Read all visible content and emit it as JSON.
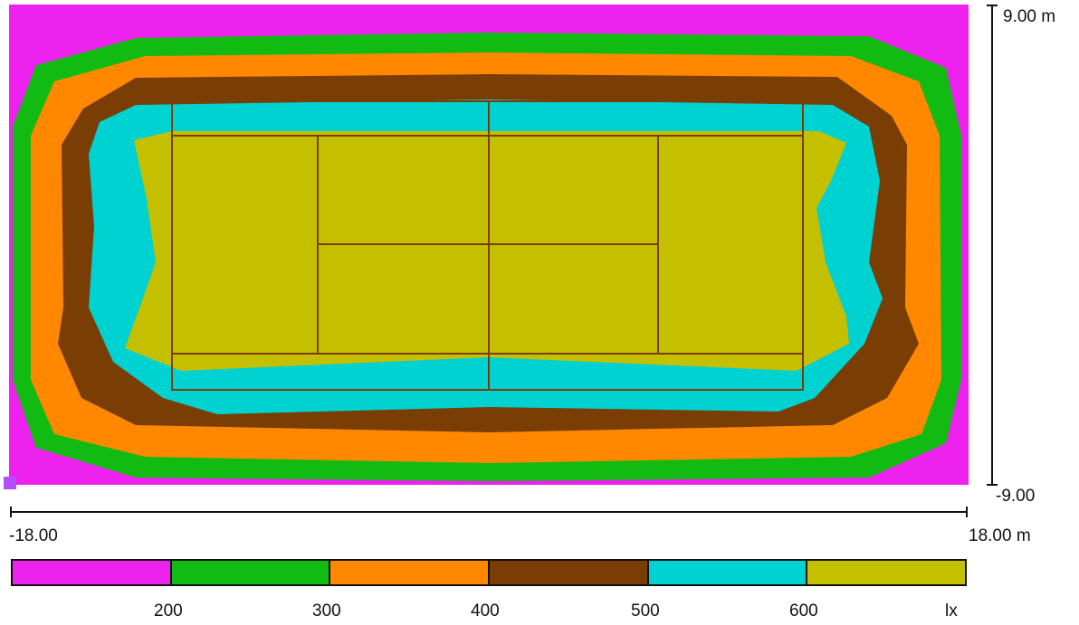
{
  "chart_data": {
    "type": "heatmap",
    "subject": "isolux",
    "x_axis": {
      "min_label": "-18.00",
      "max_label": "18.00 m",
      "range": [
        -18,
        18
      ]
    },
    "y_axis": {
      "max_label": "9.00 m",
      "min_label": "-9.00",
      "range": [
        -9,
        9
      ]
    },
    "legend": {
      "unit": "lx",
      "thresholds": [
        "200",
        "300",
        "400",
        "500",
        "600"
      ],
      "colors": [
        "#ee22ee",
        "#11bb11",
        "#ff8800",
        "#7a3e05",
        "#00d2d2",
        "#c4c000"
      ]
    },
    "court_line_color": "#7a3e05"
  }
}
